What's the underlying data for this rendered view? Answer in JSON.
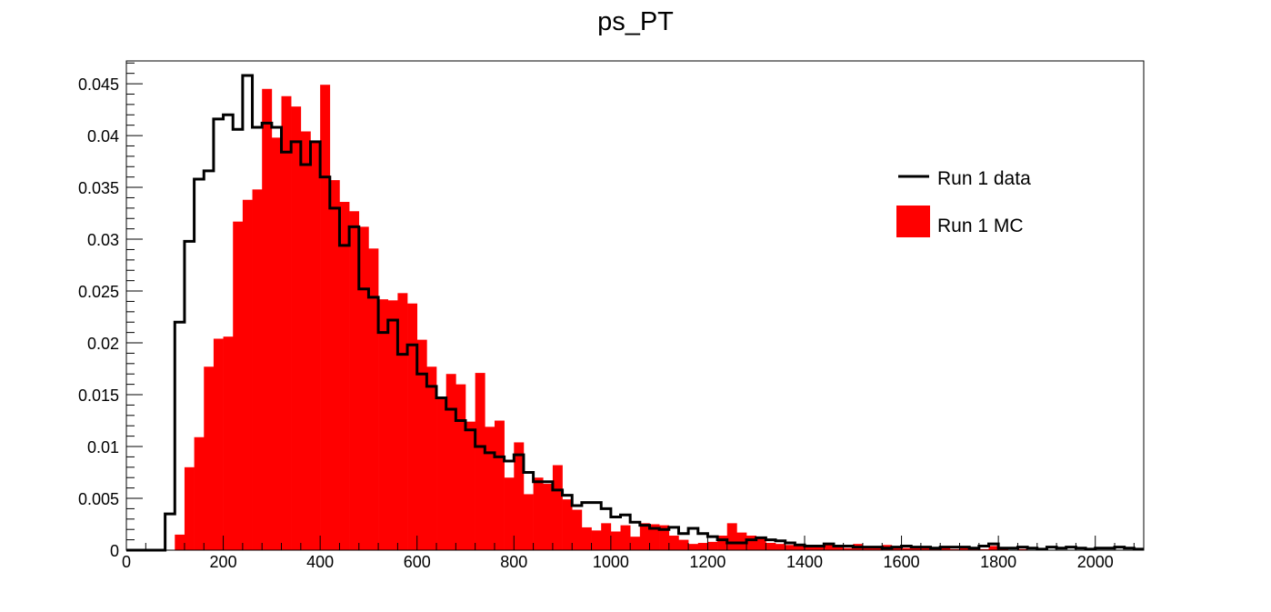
{
  "chart_data": {
    "type": "bar",
    "title": "ps_PT",
    "xlabel": "",
    "ylabel": "",
    "xlim": [
      0,
      2100
    ],
    "ylim": [
      0,
      0.0472
    ],
    "bin_width": 20,
    "grid": false,
    "legend_position": "top-right",
    "x_ticks": [
      0,
      200,
      400,
      600,
      800,
      1000,
      1200,
      1400,
      1600,
      1800,
      2000
    ],
    "x_tick_labels": [
      "0",
      "200",
      "400",
      "600",
      "800",
      "1000",
      "1200",
      "1400",
      "1600",
      "1800",
      "2000"
    ],
    "y_ticks": [
      0,
      0.005,
      0.01,
      0.015,
      0.02,
      0.025,
      0.03,
      0.035,
      0.04,
      0.045
    ],
    "y_tick_labels": [
      "0",
      "0.005",
      "0.01",
      "0.015",
      "0.02",
      "0.025",
      "0.03",
      "0.035",
      "0.04",
      "0.045"
    ],
    "series": [
      {
        "name": "Run 1 MC",
        "style": "filled",
        "color": "#ff0000",
        "values": [
          0,
          0,
          0,
          0,
          0,
          0.0015,
          0.008,
          0.0109,
          0.0177,
          0.0204,
          0.0206,
          0.0317,
          0.0338,
          0.0348,
          0.0445,
          0.0398,
          0.0438,
          0.0428,
          0.0404,
          0.0395,
          0.0449,
          0.0357,
          0.0336,
          0.0327,
          0.0312,
          0.0291,
          0.0242,
          0.0241,
          0.0248,
          0.0238,
          0.0203,
          0.0177,
          0.0148,
          0.017,
          0.016,
          0.0124,
          0.0171,
          0.0119,
          0.0125,
          0.007,
          0.0104,
          0.0054,
          0.007,
          0.0064,
          0.0082,
          0.0049,
          0.0039,
          0.0022,
          0.0019,
          0.0026,
          0.0018,
          0.0024,
          0.0013,
          0.0026,
          0.0025,
          0.0024,
          0.0014,
          0.001,
          0.0006,
          0.0007,
          0.0008,
          0.0014,
          0.0026,
          0.0017,
          0.0014,
          0.0012,
          0.0007,
          0.0006,
          0.0005,
          0.0006,
          0.0005,
          0.0003,
          0.0006,
          0.0003,
          0.0002,
          0.0006,
          0.0003,
          0.0003,
          0.0005,
          0.0002,
          0.0002,
          0.0002,
          0.0003,
          0.0002,
          0.0004,
          0.0001,
          0.0002,
          0.0002,
          0.0001,
          0.0004,
          0.0001,
          0.0,
          0.0001,
          0.0,
          0.0001,
          0.0,
          0.0,
          0.0,
          0.0,
          0.0,
          0.0,
          0.0,
          0.0,
          0.0,
          0.0
        ]
      },
      {
        "name": "Run 1 data",
        "style": "step",
        "color": "#000000",
        "values": [
          0,
          0,
          0,
          0,
          0.0035,
          0.022,
          0.0298,
          0.0358,
          0.0366,
          0.0416,
          0.042,
          0.0406,
          0.0458,
          0.0408,
          0.0412,
          0.0408,
          0.0384,
          0.0394,
          0.0372,
          0.0394,
          0.036,
          0.033,
          0.0294,
          0.0312,
          0.0252,
          0.0244,
          0.021,
          0.0222,
          0.0189,
          0.0198,
          0.017,
          0.0158,
          0.0147,
          0.0136,
          0.0125,
          0.0116,
          0.01,
          0.0094,
          0.009,
          0.0086,
          0.0092,
          0.0075,
          0.0066,
          0.0066,
          0.0058,
          0.0053,
          0.0043,
          0.0046,
          0.0046,
          0.004,
          0.0032,
          0.0034,
          0.0027,
          0.0024,
          0.0021,
          0.002,
          0.0022,
          0.0016,
          0.0021,
          0.0016,
          0.0013,
          0.001,
          0.0007,
          0.0007,
          0.001,
          0.0012,
          0.001,
          0.0009,
          0.0007,
          0.0005,
          0.0004,
          0.0004,
          0.0006,
          0.0004,
          0.0004,
          0.0003,
          0.0003,
          0.0003,
          0.0002,
          0.0003,
          0.0004,
          0.0003,
          0.0003,
          0.0002,
          0.0003,
          0.0003,
          0.0003,
          0.0002,
          0.0004,
          0.0006,
          0.0002,
          0.0002,
          0.0003,
          0.0002,
          0.0001,
          0.0003,
          0.0002,
          0.0003,
          0.0002,
          0.0001,
          0.0002,
          0.0002,
          0.0003,
          0.0002,
          0.0001
        ]
      }
    ]
  }
}
